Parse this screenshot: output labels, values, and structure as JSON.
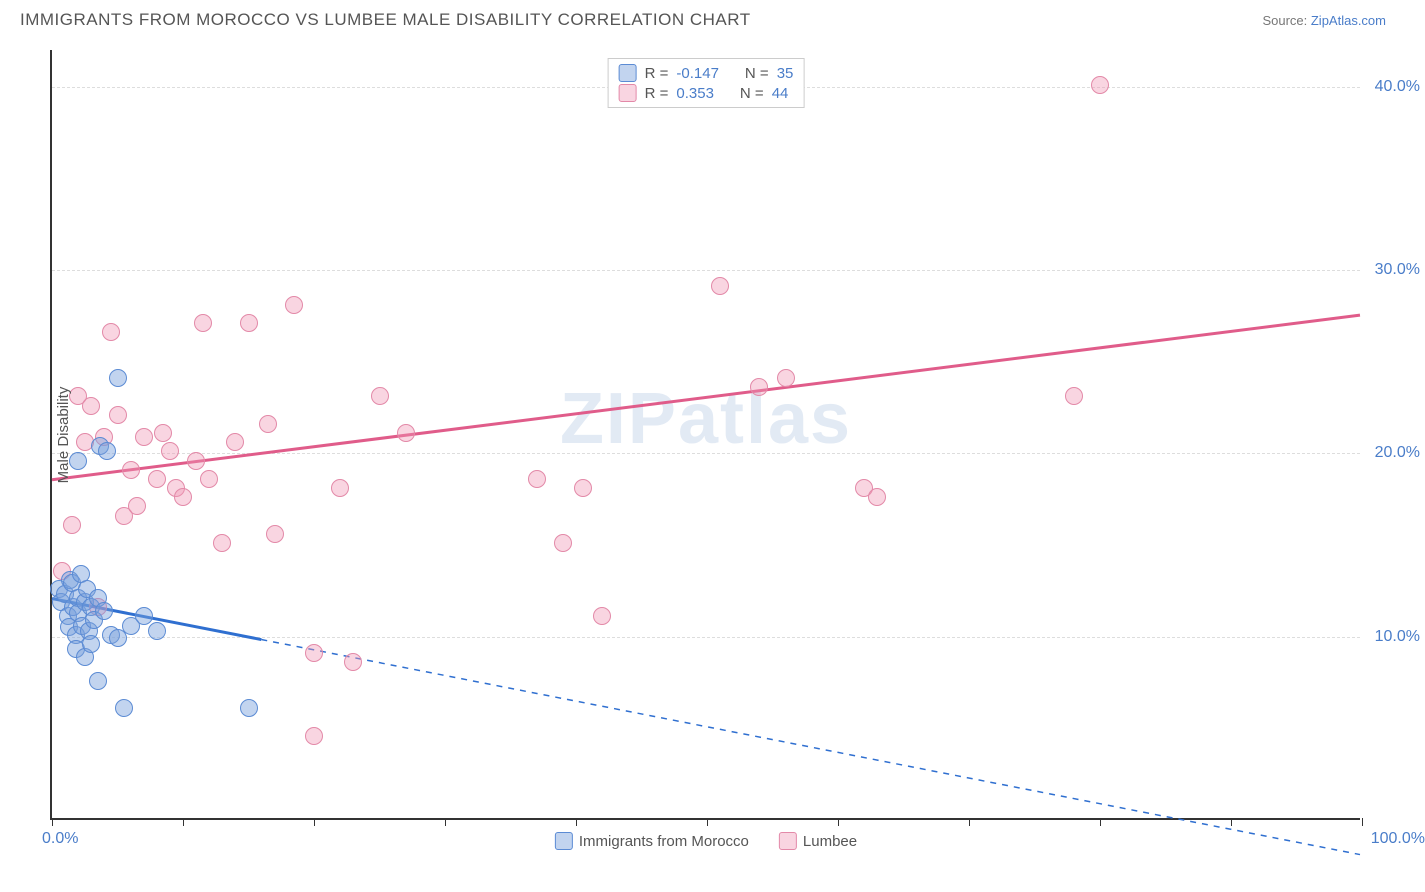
{
  "header": {
    "title": "IMMIGRANTS FROM MOROCCO VS LUMBEE MALE DISABILITY CORRELATION CHART",
    "source_prefix": "Source: ",
    "source_link": "ZipAtlas.com"
  },
  "watermark": "ZIPatlas",
  "chart": {
    "type": "scatter",
    "y_axis_title": "Male Disability",
    "xlim": [
      0,
      100
    ],
    "ylim": [
      0,
      42
    ],
    "y_ticks": [
      10,
      20,
      30,
      40
    ],
    "y_tick_labels": [
      "10.0%",
      "20.0%",
      "30.0%",
      "40.0%"
    ],
    "x_ticks": [
      0,
      10,
      20,
      30,
      40,
      50,
      60,
      70,
      80,
      90,
      100
    ],
    "x_label_min": "0.0%",
    "x_label_max": "100.0%",
    "grid_color": "#dddddd",
    "axis_color": "#333333",
    "background_color": "#ffffff",
    "label_color": "#4a7dc9",
    "series": {
      "morocco": {
        "label": "Immigrants from Morocco",
        "fill": "rgba(120,160,220,0.45)",
        "stroke": "#5b8bd4",
        "line_color": "#2f6fd0",
        "r_value": "-0.147",
        "n_value": "35",
        "trend": {
          "x1": 0,
          "y1": 12,
          "x2": 100,
          "y2": -2,
          "solid_until_x": 16
        },
        "points": [
          [
            0.5,
            12.5
          ],
          [
            0.7,
            11.8
          ],
          [
            1.0,
            12.2
          ],
          [
            1.2,
            11.0
          ],
          [
            1.3,
            10.4
          ],
          [
            1.4,
            13.0
          ],
          [
            1.5,
            12.8
          ],
          [
            1.6,
            11.5
          ],
          [
            1.8,
            10.0
          ],
          [
            1.8,
            9.2
          ],
          [
            2.0,
            12.0
          ],
          [
            2.0,
            11.2
          ],
          [
            2.2,
            13.3
          ],
          [
            2.3,
            10.5
          ],
          [
            2.5,
            11.8
          ],
          [
            2.5,
            8.8
          ],
          [
            2.7,
            12.5
          ],
          [
            2.8,
            10.2
          ],
          [
            3.0,
            11.5
          ],
          [
            3.0,
            9.5
          ],
          [
            3.2,
            10.8
          ],
          [
            3.5,
            12.0
          ],
          [
            3.5,
            7.5
          ],
          [
            3.7,
            20.3
          ],
          [
            4.0,
            11.3
          ],
          [
            4.5,
            10.0
          ],
          [
            5.0,
            24.0
          ],
          [
            5.0,
            9.8
          ],
          [
            5.5,
            6.0
          ],
          [
            6.0,
            10.5
          ],
          [
            7.0,
            11.0
          ],
          [
            8.0,
            10.2
          ],
          [
            4.2,
            20.0
          ],
          [
            15.0,
            6.0
          ],
          [
            2.0,
            19.5
          ]
        ]
      },
      "lumbee": {
        "label": "Lumbee",
        "fill": "rgba(240,150,180,0.4)",
        "stroke": "#e389a8",
        "line_color": "#e05c8a",
        "r_value": "0.353",
        "n_value": "44",
        "trend": {
          "x1": 0,
          "y1": 18.5,
          "x2": 100,
          "y2": 27.5,
          "solid_until_x": 100
        },
        "points": [
          [
            0.8,
            13.5
          ],
          [
            1.5,
            16.0
          ],
          [
            2.0,
            23.0
          ],
          [
            2.5,
            20.5
          ],
          [
            3.0,
            22.5
          ],
          [
            3.5,
            11.5
          ],
          [
            4.5,
            26.5
          ],
          [
            5.0,
            22.0
          ],
          [
            5.5,
            16.5
          ],
          [
            6.0,
            19.0
          ],
          [
            6.5,
            17.0
          ],
          [
            7.0,
            20.8
          ],
          [
            8.0,
            18.5
          ],
          [
            8.5,
            21.0
          ],
          [
            9.0,
            20.0
          ],
          [
            9.5,
            18.0
          ],
          [
            10.0,
            17.5
          ],
          [
            11.0,
            19.5
          ],
          [
            11.5,
            27.0
          ],
          [
            12.0,
            18.5
          ],
          [
            13.0,
            15.0
          ],
          [
            14.0,
            20.5
          ],
          [
            15.0,
            27.0
          ],
          [
            16.5,
            21.5
          ],
          [
            17.0,
            15.5
          ],
          [
            18.5,
            28.0
          ],
          [
            20.0,
            9.0
          ],
          [
            22.0,
            18.0
          ],
          [
            23.0,
            8.5
          ],
          [
            25.0,
            23.0
          ],
          [
            27.0,
            21.0
          ],
          [
            37.0,
            18.5
          ],
          [
            39.0,
            15.0
          ],
          [
            40.5,
            18.0
          ],
          [
            42.0,
            11.0
          ],
          [
            51.0,
            29.0
          ],
          [
            54.0,
            23.5
          ],
          [
            56.0,
            24.0
          ],
          [
            62.0,
            18.0
          ],
          [
            63.0,
            17.5
          ],
          [
            78.0,
            23.0
          ],
          [
            80.0,
            40.0
          ],
          [
            20.0,
            4.5
          ],
          [
            4.0,
            20.8
          ]
        ]
      }
    }
  },
  "stats_legend": {
    "r_label": "R =",
    "n_label": "N ="
  }
}
